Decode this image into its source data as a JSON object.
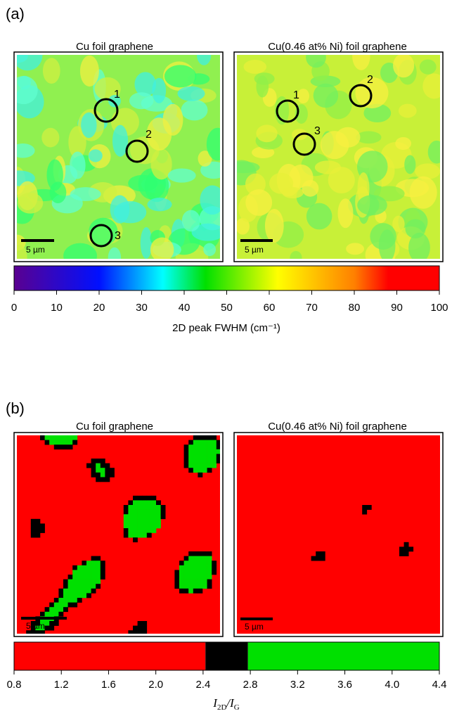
{
  "panel_a": {
    "label": "(a)",
    "maps": [
      {
        "title": "Cu foil graphene",
        "scale_bar": "5 µm",
        "markers": [
          "1",
          "2",
          "3"
        ]
      },
      {
        "title": "Cu(0.46 at% Ni) foil graphene",
        "scale_bar": "5 µm",
        "markers": [
          "1",
          "2",
          "3"
        ]
      }
    ],
    "colorbar": {
      "lim": [
        0,
        100
      ],
      "ticks": [
        0,
        10,
        20,
        30,
        40,
        50,
        60,
        70,
        80,
        90,
        100
      ],
      "stops": [
        {
          "value": 0,
          "color": "#5a0090"
        },
        {
          "value": 20,
          "color": "#0010ff"
        },
        {
          "value": 35,
          "color": "#00ffff"
        },
        {
          "value": 45,
          "color": "#00e000"
        },
        {
          "value": 62,
          "color": "#ffff00"
        },
        {
          "value": 80,
          "color": "#ff8000"
        },
        {
          "value": 88,
          "color": "#ff0000"
        },
        {
          "value": 100,
          "color": "#ff0000"
        }
      ],
      "label": "2D peak FWHM (cm⁻¹)"
    }
  },
  "panel_b": {
    "label": "(b)",
    "maps": [
      {
        "title": "Cu foil graphene",
        "scale_bar": "5 µm"
      },
      {
        "title": "Cu(0.46 at% Ni) foil graphene",
        "scale_bar": "5 µm"
      }
    ],
    "colorbar": {
      "lim": [
        0.8,
        4.4
      ],
      "ticks": [
        0.8,
        1.2,
        1.6,
        {
          "value": 2,
          "label": "2.0"
        },
        2.4,
        2.8,
        3.2,
        3.6,
        {
          "value": 4,
          "label": "4.0"
        },
        4.4
      ],
      "segments": [
        {
          "from": 0.8,
          "to": 2.42,
          "color": "#ff0000"
        },
        {
          "from": 2.42,
          "to": 2.78,
          "color": "#000000"
        },
        {
          "from": 2.78,
          "to": 4.4,
          "color": "#00e000"
        }
      ],
      "label": [
        "I",
        "2D",
        "/I",
        "G"
      ]
    }
  }
}
